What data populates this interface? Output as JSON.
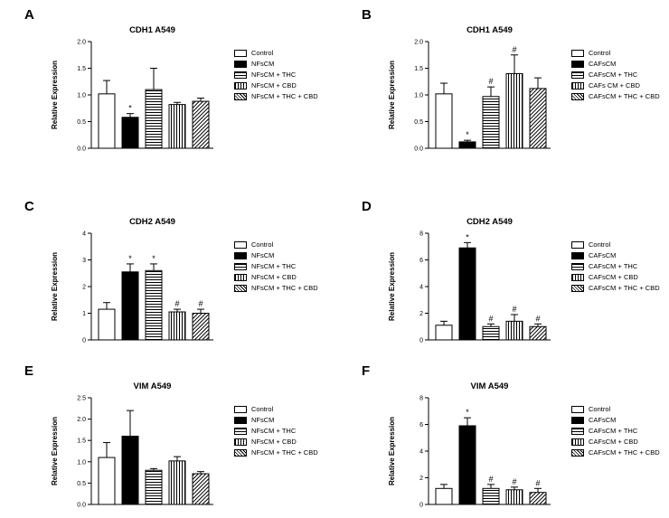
{
  "figure": {
    "background": "#ffffff",
    "text_color": "#000000",
    "bar_outline": "#000000",
    "series_patterns": [
      "open-white",
      "solid-black",
      "horizontal-stripes",
      "vertical-stripes",
      "diagonal-stripes"
    ]
  },
  "chart_data": [
    {
      "type": "bar",
      "panel": "A",
      "title": "CDH1 A549",
      "ylabel": "Relative Expression",
      "xlabel": "",
      "ylim": [
        0,
        2.0
      ],
      "yticks": [
        0,
        0.5,
        1.0,
        1.5,
        2.0
      ],
      "ytick_labels": [
        "0.0",
        "0.5",
        "1.0",
        "1.5",
        "2.0"
      ],
      "categories": [
        "Control",
        "NFsCM",
        "NFsCM + THC",
        "NFsCM + CBD",
        "NFsCM + THC + CBD"
      ],
      "values": [
        1.02,
        0.58,
        1.1,
        0.82,
        0.88
      ],
      "errors": [
        0.25,
        0.07,
        0.4,
        0.04,
        0.06
      ],
      "sig": [
        "",
        "*",
        "",
        "",
        ""
      ],
      "legend_position": "right",
      "grid": false
    },
    {
      "type": "bar",
      "panel": "B",
      "title": "CDH1 A549",
      "ylabel": "Relative Expression",
      "xlabel": "",
      "ylim": [
        0,
        2.0
      ],
      "yticks": [
        0,
        0.5,
        1.0,
        1.5,
        2.0
      ],
      "ytick_labels": [
        "0.0",
        "0.5",
        "1.0",
        "1.5",
        "2.0"
      ],
      "categories": [
        "Control",
        "CAFsCM",
        "CAFsCM + THC",
        "CAFs CM + CBD",
        "CAFsCM + THC + CBD"
      ],
      "values": [
        1.02,
        0.12,
        0.97,
        1.4,
        1.12
      ],
      "errors": [
        0.2,
        0.03,
        0.18,
        0.35,
        0.2
      ],
      "sig": [
        "",
        "*",
        "#",
        "#",
        ""
      ],
      "legend_position": "right",
      "grid": false
    },
    {
      "type": "bar",
      "panel": "C",
      "title": "CDH2 A549",
      "ylabel": "Relative Expression",
      "xlabel": "",
      "ylim": [
        0,
        4
      ],
      "yticks": [
        0,
        1,
        2,
        3,
        4
      ],
      "ytick_labels": [
        "0",
        "1",
        "2",
        "3",
        "4"
      ],
      "categories": [
        "Control",
        "NFsCM",
        "NFsCM + THC",
        "NFsCM + CBD",
        "NFsCM + THC + CBD"
      ],
      "values": [
        1.15,
        2.55,
        2.6,
        1.05,
        1.0
      ],
      "errors": [
        0.25,
        0.3,
        0.25,
        0.1,
        0.15
      ],
      "sig": [
        "",
        "*",
        "*",
        "#",
        "#"
      ],
      "legend_position": "right",
      "grid": false
    },
    {
      "type": "bar",
      "panel": "D",
      "title": "CDH2 A549",
      "ylabel": "Relative Expression",
      "xlabel": "",
      "ylim": [
        0,
        8
      ],
      "yticks": [
        0,
        2,
        4,
        6,
        8
      ],
      "ytick_labels": [
        "0",
        "2",
        "4",
        "6",
        "8"
      ],
      "categories": [
        "Control",
        "CAFsCM",
        "CAFsCM + THC",
        "CAFsCM + CBD",
        "CAFsCM + THC + CBD"
      ],
      "values": [
        1.1,
        6.9,
        1.0,
        1.4,
        1.0
      ],
      "errors": [
        0.3,
        0.4,
        0.2,
        0.5,
        0.2
      ],
      "sig": [
        "",
        "*",
        "#",
        "#",
        "#"
      ],
      "legend_position": "right",
      "grid": false
    },
    {
      "type": "bar",
      "panel": "E",
      "title": "VIM A549",
      "ylabel": "Relative Expression",
      "xlabel": "",
      "ylim": [
        0,
        2.5
      ],
      "yticks": [
        0,
        0.5,
        1.0,
        1.5,
        2.0,
        2.5
      ],
      "ytick_labels": [
        "0.0",
        "0.5",
        "1.0",
        "1.5",
        "2.0",
        "2.5"
      ],
      "categories": [
        "Control",
        "NFsCM",
        "NFsCM + THC",
        "NFsCM + CBD",
        "NFsCM + THC + CBD"
      ],
      "values": [
        1.1,
        1.6,
        0.8,
        1.02,
        0.72
      ],
      "errors": [
        0.35,
        0.6,
        0.04,
        0.1,
        0.05
      ],
      "sig": [
        "",
        "",
        "",
        "",
        ""
      ],
      "legend_position": "right",
      "grid": false
    },
    {
      "type": "bar",
      "panel": "F",
      "title": "VIM A549",
      "ylabel": "Relative Expression",
      "xlabel": "",
      "ylim": [
        0,
        8
      ],
      "yticks": [
        0,
        2,
        4,
        6,
        8
      ],
      "ytick_labels": [
        "0",
        "2",
        "4",
        "6",
        "8"
      ],
      "categories": [
        "Control",
        "CAFsCM",
        "CAFsCM + THC",
        "CAFsCM + CBD",
        "CAFsCM + THC + CBD"
      ],
      "values": [
        1.2,
        5.9,
        1.2,
        1.1,
        0.9
      ],
      "errors": [
        0.3,
        0.6,
        0.3,
        0.2,
        0.3
      ],
      "sig": [
        "",
        "*",
        "#",
        "#",
        "#"
      ],
      "legend_position": "right",
      "grid": false
    }
  ]
}
